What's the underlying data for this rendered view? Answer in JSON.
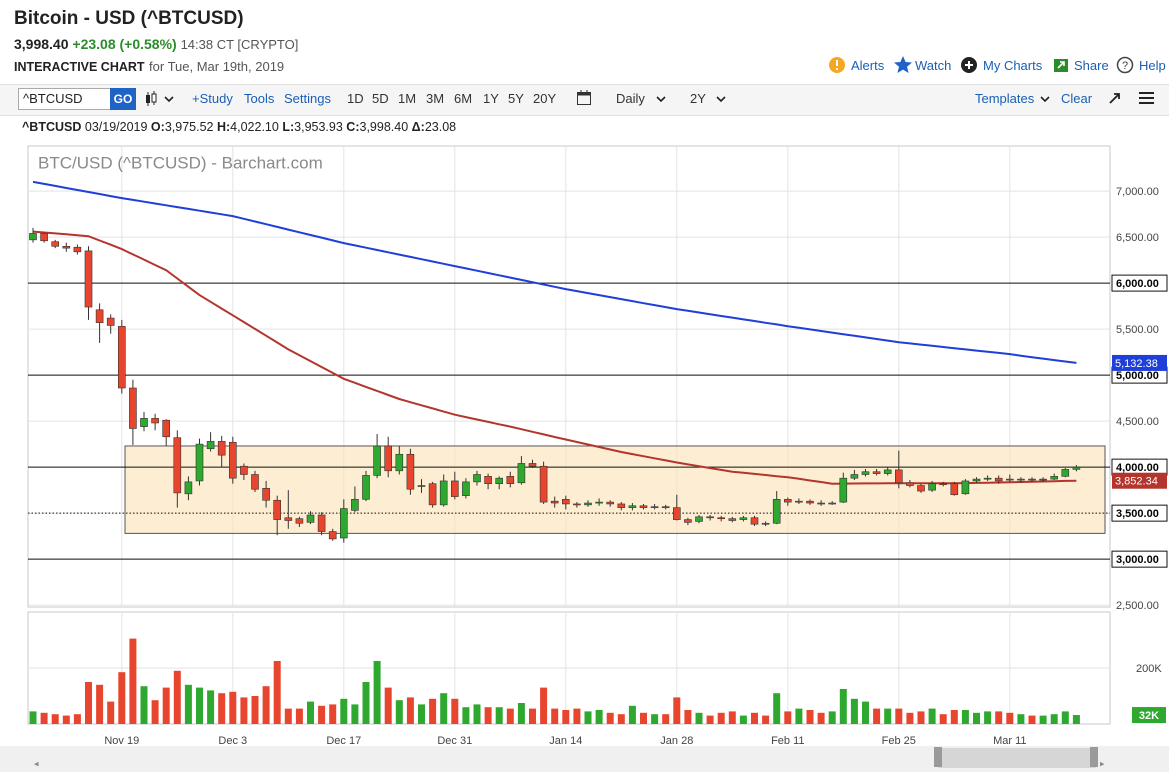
{
  "header": {
    "title": "Bitcoin - USD (^BTCUSD)",
    "price": "3,998.40",
    "change": "+23.08 (+0.58%)",
    "time": "14:38 CT [CRYPTO]",
    "label": "INTERACTIVE CHART",
    "date": "for Tue, Mar 19th, 2019",
    "links": [
      "Alerts",
      "Watch",
      "My Charts",
      "Share",
      "Help"
    ]
  },
  "toolbar": {
    "symbol": "^BTCUSD",
    "go": "GO",
    "buttons": [
      "+Study",
      "Tools",
      "Settings"
    ],
    "ranges": [
      "1D",
      "5D",
      "1M",
      "3M",
      "6M",
      "1Y",
      "5Y",
      "20Y"
    ],
    "interval": "Daily",
    "period": "2Y",
    "templates": "Templates",
    "clear": "Clear"
  },
  "quote": {
    "symbol": "^BTCUSD",
    "date": "03/19/2019",
    "fields": [
      [
        "O:",
        "3,975.52"
      ],
      [
        "H:",
        "4,022.10"
      ],
      [
        "L:",
        "3,953.93"
      ],
      [
        "C:",
        "3,998.40"
      ],
      [
        "Δ:",
        "23.08"
      ]
    ]
  },
  "chart_data": {
    "type": "candlestick",
    "title": "BTC/USD (^BTCUSD) - Barchart.com",
    "categories": [
      null,
      null,
      null,
      null,
      null,
      null,
      null,
      null,
      "Nov 19",
      null,
      null,
      null,
      null,
      null,
      null,
      null,
      null,
      null,
      "Dec 3",
      null,
      null,
      null,
      null,
      null,
      null,
      null,
      null,
      null,
      "Dec 17",
      null,
      null,
      null,
      null,
      null,
      null,
      null,
      null,
      null,
      "Dec 31",
      null,
      null,
      null,
      null,
      null,
      null,
      null,
      null,
      null,
      "Jan 14",
      null,
      null,
      null,
      null,
      null,
      null,
      null,
      null,
      null,
      "Jan 28",
      null,
      null,
      null,
      null,
      null,
      null,
      null,
      null,
      null,
      "Feb 11",
      null,
      null,
      null,
      null,
      null,
      null,
      null,
      null,
      null,
      "Feb 25",
      null,
      null,
      null,
      null,
      null,
      null,
      null,
      null,
      null,
      "Mar 11",
      null,
      null,
      null,
      null,
      null,
      null
    ],
    "open": [
      6470,
      6540,
      6450,
      6400,
      6390,
      6350,
      5710,
      5620,
      5530,
      4860,
      4440,
      4530,
      4510,
      4320,
      3710,
      3850,
      4200,
      4280,
      4270,
      4010,
      3920,
      3770,
      3640,
      3450,
      3440,
      3400,
      3480,
      3300,
      3230,
      3530,
      3650,
      3910,
      4230,
      3960,
      4140,
      3790,
      3820,
      3590,
      3850,
      3690,
      3840,
      3900,
      3820,
      3900,
      3830,
      4040,
      4010,
      3630,
      3650,
      3600,
      3590,
      3610,
      3620,
      3600,
      3560,
      3580,
      3560,
      3570,
      3560,
      3430,
      3410,
      3460,
      3450,
      3440,
      3430,
      3450,
      3390,
      3390,
      3650,
      3620,
      3630,
      3610,
      3600,
      3620,
      3880,
      3920,
      3950,
      3930,
      3970,
      3830,
      3800,
      3750,
      3820,
      3820,
      3710,
      3850,
      3870,
      3880,
      3870,
      3860,
      3870,
      3860,
      3870,
      3900,
      3975.52
    ],
    "high": [
      6600,
      6550,
      6470,
      6440,
      6420,
      6400,
      5780,
      5660,
      5600,
      4950,
      4600,
      4580,
      4520,
      4400,
      3900,
      4310,
      4380,
      4340,
      4330,
      4040,
      3960,
      3850,
      3690,
      3750,
      3460,
      3520,
      3510,
      3330,
      3650,
      3790,
      3960,
      4360,
      4330,
      4230,
      4200,
      3870,
      3840,
      3920,
      3950,
      3880,
      3960,
      3930,
      3900,
      3950,
      4120,
      4080,
      4060,
      3680,
      3690,
      3620,
      3640,
      3660,
      3640,
      3620,
      3610,
      3600,
      3600,
      3590,
      3700,
      3450,
      3480,
      3480,
      3470,
      3460,
      3470,
      3470,
      3410,
      3740,
      3670,
      3660,
      3650,
      3640,
      3630,
      3940,
      3970,
      3980,
      3980,
      4000,
      4180,
      3860,
      3820,
      3850,
      3840,
      3840,
      3870,
      3890,
      3910,
      3910,
      3920,
      3890,
      3890,
      3890,
      3930,
      3990,
      4022.1
    ],
    "low": [
      6440,
      6440,
      6380,
      6340,
      6310,
      5600,
      5350,
      5450,
      4800,
      4240,
      4390,
      4400,
      4230,
      3560,
      3640,
      3800,
      4170,
      4000,
      3820,
      3860,
      3730,
      3560,
      3260,
      3330,
      3350,
      3380,
      3260,
      3200,
      3180,
      3510,
      3630,
      3880,
      3890,
      3920,
      3700,
      3720,
      3560,
      3570,
      3650,
      3660,
      3800,
      3760,
      3760,
      3780,
      3810,
      3990,
      3600,
      3560,
      3540,
      3560,
      3570,
      3580,
      3570,
      3530,
      3530,
      3540,
      3540,
      3540,
      3420,
      3370,
      3390,
      3420,
      3410,
      3400,
      3410,
      3360,
      3360,
      3380,
      3580,
      3600,
      3590,
      3580,
      3590,
      3610,
      3860,
      3900,
      3910,
      3910,
      3770,
      3780,
      3720,
      3730,
      3790,
      3690,
      3700,
      3830,
      3850,
      3820,
      3840,
      3830,
      3840,
      3840,
      3860,
      3890,
      3953.93
    ],
    "close": [
      6540,
      6460,
      6400,
      6380,
      6340,
      5740,
      5570,
      5540,
      4860,
      4420,
      4530,
      4480,
      4330,
      3720,
      3840,
      4250,
      4280,
      4130,
      3880,
      3920,
      3760,
      3640,
      3430,
      3420,
      3390,
      3480,
      3300,
      3220,
      3550,
      3650,
      3910,
      4230,
      3960,
      4140,
      3760,
      3800,
      3590,
      3850,
      3680,
      3840,
      3920,
      3820,
      3880,
      3820,
      4040,
      4010,
      3620,
      3610,
      3600,
      3590,
      3610,
      3620,
      3600,
      3560,
      3580,
      3560,
      3570,
      3560,
      3430,
      3400,
      3460,
      3450,
      3440,
      3420,
      3450,
      3380,
      3380,
      3650,
      3620,
      3630,
      3610,
      3600,
      3610,
      3880,
      3920,
      3950,
      3930,
      3970,
      3830,
      3800,
      3740,
      3820,
      3810,
      3700,
      3850,
      3870,
      3880,
      3850,
      3860,
      3870,
      3860,
      3870,
      3900,
      3975.32,
      3998.4
    ],
    "up_color": "#2fa82f",
    "down_color": "#e8452e",
    "overlays": [
      {
        "color": "#1e3fd8",
        "last_label": "5,132.38",
        "values": [
          7100,
          7078,
          7056,
          7034,
          7012,
          6990,
          6968,
          6946,
          6924,
          6904,
          6885,
          6865,
          6846,
          6826,
          6806,
          6787,
          6767,
          6748,
          6728,
          6699,
          6669,
          6640,
          6611,
          6582,
          6552,
          6523,
          6494,
          6464,
          6435,
          6410,
          6385,
          6360,
          6335,
          6310,
          6285,
          6260,
          6235,
          6210,
          6185,
          6160,
          6135,
          6110,
          6085,
          6060,
          6035,
          6010,
          5985,
          5960,
          5935,
          5913,
          5891,
          5870,
          5848,
          5826,
          5804,
          5782,
          5761,
          5739,
          5717,
          5699,
          5680,
          5662,
          5643,
          5625,
          5606,
          5588,
          5569,
          5551,
          5532,
          5515,
          5497,
          5480,
          5462,
          5445,
          5428,
          5410,
          5393,
          5375,
          5358,
          5345,
          5332,
          5319,
          5306,
          5293,
          5280,
          5267,
          5254,
          5241,
          5228,
          5211,
          5195,
          5179,
          5163,
          5148,
          5132.38
        ]
      },
      {
        "color": "#b3352b",
        "last_label": "3,852.34",
        "values": [
          6560,
          6550,
          6540,
          6530,
          6520,
          6510,
          6463,
          6417,
          6370,
          6312,
          6255,
          6197,
          6140,
          6050,
          5960,
          5870,
          5797,
          5723,
          5650,
          5576,
          5502,
          5428,
          5354,
          5280,
          5216,
          5152,
          5088,
          5024,
          4960,
          4916,
          4872,
          4828,
          4784,
          4740,
          4706,
          4672,
          4638,
          4604,
          4570,
          4544,
          4518,
          4492,
          4466,
          4440,
          4412,
          4384,
          4356,
          4328,
          4300,
          4273,
          4246,
          4219,
          4192,
          4165,
          4142,
          4119,
          4096,
          4073,
          4050,
          4030,
          4010,
          3990,
          3970,
          3950,
          3938,
          3926,
          3914,
          3902,
          3890,
          3873,
          3855,
          3838,
          3820,
          3821,
          3822,
          3823,
          3823,
          3824,
          3825,
          3825,
          3825,
          3825,
          3825,
          3825,
          3827,
          3829,
          3831,
          3833,
          3835,
          3838,
          3841,
          3844,
          3847,
          3850,
          3852.34
        ]
      }
    ],
    "ylim": [
      2480,
      7490
    ],
    "yticks": [
      {
        "value": 2500,
        "label": "2,500.00"
      },
      {
        "value": 3000,
        "label": "3,000.00"
      },
      {
        "value": 3500,
        "label": "3,500.00"
      },
      {
        "value": 4000,
        "label": "4,000.00"
      },
      {
        "value": 4500,
        "label": "4,500.00"
      },
      {
        "value": 5000,
        "label": "5,000.00"
      },
      {
        "value": 5500,
        "label": "5,500.00"
      },
      {
        "value": 6000,
        "label": "6,000.00"
      },
      {
        "value": 6500,
        "label": "6,500.00"
      },
      {
        "value": 7000,
        "label": "7,000.00"
      }
    ],
    "grid": true,
    "hlines": [
      3000,
      4000,
      5000,
      6000
    ],
    "dotted_hlines": [
      3500
    ],
    "box_ylim": [
      3280,
      4230
    ],
    "volume": {
      "ylim": [
        0,
        400000
      ],
      "yticks": [
        {
          "value": 200000,
          "label": "200K"
        }
      ],
      "last_label": "32K",
      "values": [
        45000,
        40000,
        35000,
        30000,
        35000,
        150000,
        140000,
        80000,
        185000,
        305000,
        135000,
        85000,
        130000,
        190000,
        140000,
        130000,
        120000,
        110000,
        115000,
        95000,
        100000,
        135000,
        225000,
        55000,
        55000,
        80000,
        65000,
        70000,
        90000,
        70000,
        150000,
        225000,
        130000,
        85000,
        95000,
        70000,
        90000,
        110000,
        90000,
        60000,
        70000,
        60000,
        60000,
        55000,
        75000,
        55000,
        130000,
        55000,
        50000,
        55000,
        45000,
        50000,
        40000,
        35000,
        65000,
        40000,
        35000,
        35000,
        95000,
        50000,
        40000,
        30000,
        40000,
        45000,
        30000,
        40000,
        30000,
        110000,
        45000,
        55000,
        50000,
        40000,
        45000,
        125000,
        90000,
        80000,
        55000,
        55000,
        55000,
        40000,
        45000,
        55000,
        35000,
        50000,
        50000,
        40000,
        45000,
        45000,
        40000,
        35000,
        30000,
        30000,
        35000,
        45000,
        32000
      ]
    }
  }
}
